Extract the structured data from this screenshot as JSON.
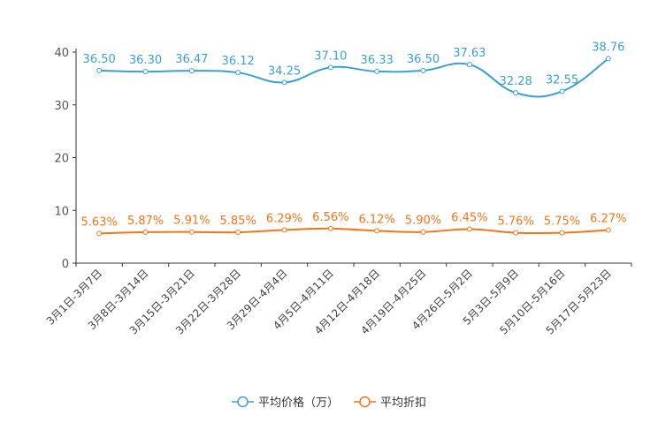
{
  "chart_data": {
    "type": "line",
    "categories": [
      "3月1日-3月7日",
      "3月8日-3月14日",
      "3月15日-3月21日",
      "3月22日-3月28日",
      "3月29日-4月4日",
      "4月5日-4月11日",
      "4月12日-4月18日",
      "4月19日-4月25日",
      "4月26日-5月2日",
      "5月3日-5月9日",
      "5月10日-5月16日",
      "5月17日-5月23日"
    ],
    "ylim": [
      0,
      40
    ],
    "yticks": [
      0,
      10,
      20,
      30,
      40
    ],
    "smooth": true,
    "legend_position": "bottom-center",
    "series": [
      {
        "name": "平均价格（万）",
        "color": "#3c9fd4",
        "values": [
          36.5,
          36.3,
          36.47,
          36.12,
          34.25,
          37.1,
          36.33,
          36.5,
          37.63,
          32.28,
          32.55,
          38.76
        ],
        "labels": [
          "36.50",
          "36.30",
          "36.47",
          "36.12",
          "34.25",
          "37.10",
          "36.33",
          "36.50",
          "37.63",
          "32.28",
          "32.55",
          "38.76"
        ]
      },
      {
        "name": "平均折扣",
        "color": "#f5741a",
        "values": [
          5.63,
          5.87,
          5.91,
          5.85,
          6.29,
          6.56,
          6.12,
          5.9,
          6.45,
          5.76,
          5.75,
          6.27
        ],
        "labels": [
          "5.63%",
          "5.87%",
          "5.91%",
          "5.85%",
          "6.29%",
          "6.56%",
          "6.12%",
          "5.90%",
          "6.45%",
          "5.76%",
          "5.75%",
          "6.27%"
        ]
      }
    ]
  }
}
